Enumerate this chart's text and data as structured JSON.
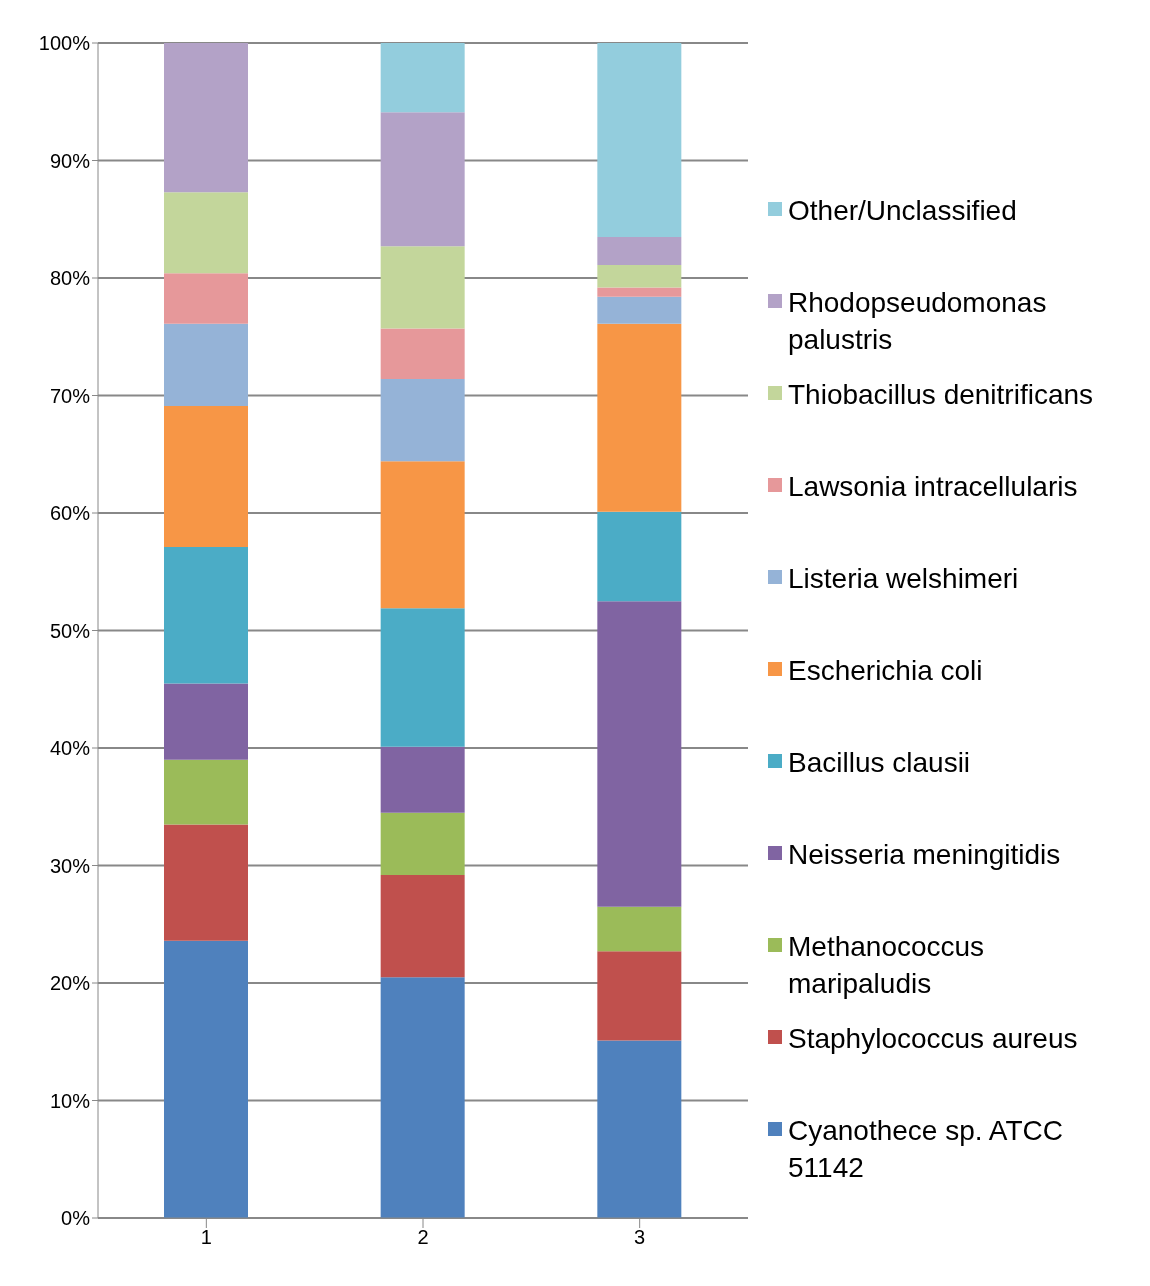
{
  "chart_data": {
    "type": "bar",
    "stacked": true,
    "categories": [
      "1",
      "2",
      "3"
    ],
    "series": [
      {
        "name": "Cyanothece sp. ATCC 51142",
        "color": "#4f81bd",
        "values": [
          23.6,
          20.5,
          15.1
        ]
      },
      {
        "name": "Staphylococcus aureus",
        "color": "#c0504d",
        "values": [
          9.9,
          8.7,
          7.6
        ]
      },
      {
        "name": "Methanococcus maripaludis",
        "color": "#9bbb59",
        "values": [
          5.5,
          5.3,
          3.8
        ]
      },
      {
        "name": "Neisseria meningitidis",
        "color": "#8064a2",
        "values": [
          6.5,
          5.6,
          26.0
        ]
      },
      {
        "name": "Bacillus clausii",
        "color": "#4bacc6",
        "values": [
          11.6,
          11.8,
          7.6
        ]
      },
      {
        "name": "Escherichia coli",
        "color": "#f79646",
        "values": [
          12.0,
          12.5,
          16.0
        ]
      },
      {
        "name": "Listeria welshimeri",
        "color": "#95b3d7",
        "values": [
          7.0,
          7.0,
          2.3
        ]
      },
      {
        "name": "Lawsonia intracellularis",
        "color": "#e6989a",
        "values": [
          4.3,
          4.3,
          0.8
        ]
      },
      {
        "name": "Thiobacillus denitrificans",
        "color": "#c3d69b",
        "values": [
          6.9,
          7.0,
          1.9
        ]
      },
      {
        "name": "Rhodopseudomonas palustris",
        "color": "#b3a2c7",
        "values": [
          12.7,
          11.4,
          2.4
        ]
      },
      {
        "name": "Other/Unclassified",
        "color": "#93cddd",
        "values": [
          0,
          5.9,
          16.5
        ]
      }
    ],
    "ylim": [
      0,
      100
    ],
    "yticks": [
      {
        "value": 0,
        "label": "0%"
      },
      {
        "value": 10,
        "label": "10%"
      },
      {
        "value": 20,
        "label": "20%"
      },
      {
        "value": 30,
        "label": "30%"
      },
      {
        "value": 40,
        "label": "40%"
      },
      {
        "value": 50,
        "label": "50%"
      },
      {
        "value": 60,
        "label": "60%"
      },
      {
        "value": 70,
        "label": "70%"
      },
      {
        "value": 80,
        "label": "80%"
      },
      {
        "value": 90,
        "label": "90%"
      },
      {
        "value": 100,
        "label": "100%"
      }
    ],
    "grid": "y",
    "legend": "right"
  }
}
